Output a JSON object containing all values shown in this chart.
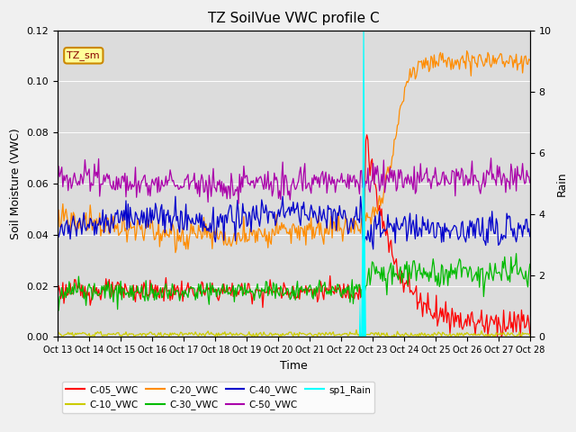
{
  "title": "TZ SoilVue VWC profile C",
  "xlabel": "Time",
  "ylabel_left": "Soil Moisture (VWC)",
  "ylabel_right": "Rain",
  "ylim_left": [
    0.0,
    0.12
  ],
  "ylim_right": [
    0.0,
    10.0
  ],
  "yticks_left": [
    0.0,
    0.02,
    0.04,
    0.06,
    0.08,
    0.1,
    0.12
  ],
  "yticks_right": [
    0.0,
    2.0,
    4.0,
    6.0,
    8.0,
    10.0
  ],
  "num_points": 450,
  "rain_event_idx": 290,
  "xtick_labels": [
    "Oct 13",
    "Oct 14",
    "Oct 15",
    "Oct 16",
    "Oct 17",
    "Oct 18",
    "Oct 19",
    "Oct 20",
    "Oct 21",
    "Oct 22",
    "Oct 23",
    "Oct 24",
    "Oct 25",
    "Oct 26",
    "Oct 27",
    "Oct 28"
  ],
  "background_color": "#f0f0f0",
  "plot_bg_color": "#dcdcdc",
  "annotation_box_color": "#ffff99",
  "annotation_box_edge": "#cc8800",
  "annotation_text": "TZ_sm",
  "C05_color": "#ff0000",
  "C05_label": "C-05_VWC",
  "C10_color": "#cccc00",
  "C10_label": "C-10_VWC",
  "C20_color": "#ff8c00",
  "C20_label": "C-20_VWC",
  "C30_color": "#00bb00",
  "C30_label": "C-30_VWC",
  "C40_color": "#0000cc",
  "C40_label": "C-40_VWC",
  "C50_color": "#aa00aa",
  "C50_label": "C-50_VWC",
  "rain_color": "#00ffff",
  "rain_label": "sp1_Rain"
}
